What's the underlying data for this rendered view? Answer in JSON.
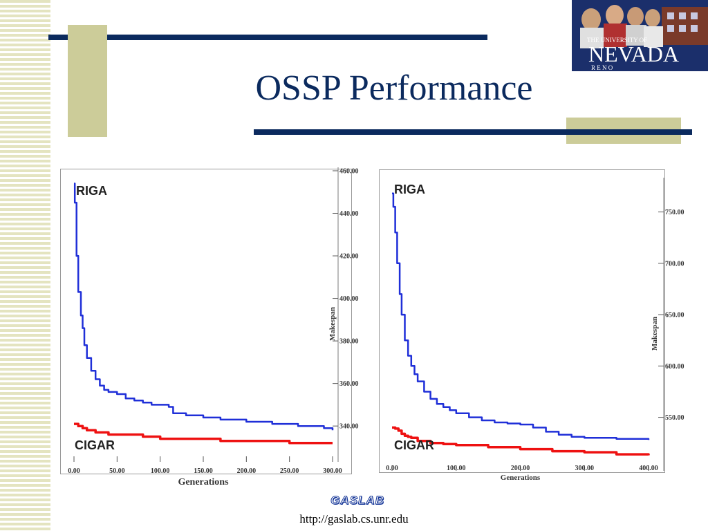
{
  "slide": {
    "title": "OSSP Performance",
    "footer_brand": "GASLAB",
    "footer_url": "http://gaslab.cs.unr.edu",
    "logo": {
      "line1": "THE UNIVERSITY OF",
      "line2": "NEVADA",
      "line3": "R E N O"
    }
  },
  "colors": {
    "title": "#0b2a5e",
    "accent_bar": "#0b2a5e",
    "stripe": "#e4e4c0",
    "riga": "#1f2fd8",
    "cigar": "#ee1111"
  },
  "chart_data": [
    {
      "type": "line",
      "xlabel": "Generations",
      "ylabel": "Makespan",
      "xlim": [
        0,
        300
      ],
      "ylim": [
        329,
        460
      ],
      "xticks": [
        "0.00",
        "50.00",
        "100.00",
        "150.00",
        "200.00",
        "250.00",
        "300.00"
      ],
      "yticks": [
        "340.00",
        "360.00",
        "380.00",
        "400.00",
        "420.00",
        "440.00",
        "460.00"
      ],
      "series": [
        {
          "name": "RIGA",
          "x": [
            0,
            1,
            3,
            5,
            8,
            10,
            12,
            15,
            20,
            25,
            30,
            35,
            40,
            50,
            60,
            70,
            80,
            90,
            100,
            110,
            115,
            130,
            150,
            170,
            200,
            230,
            260,
            290,
            300
          ],
          "y": [
            454,
            445,
            420,
            403,
            392,
            386,
            378,
            372,
            366,
            362,
            359,
            357,
            356,
            355,
            353,
            352,
            351,
            350,
            350,
            349,
            346,
            345,
            344,
            343,
            342,
            341,
            340,
            339,
            338
          ]
        },
        {
          "name": "CIGAR",
          "x": [
            0,
            5,
            10,
            15,
            20,
            25,
            30,
            40,
            60,
            80,
            100,
            130,
            150,
            170,
            200,
            250,
            280,
            300
          ],
          "y": [
            341,
            340,
            339,
            338,
            338,
            337,
            337,
            336,
            336,
            335,
            334,
            334,
            334,
            333,
            333,
            332,
            332,
            332
          ]
        }
      ]
    },
    {
      "type": "line",
      "xlabel": "Generations",
      "ylabel": "Makespan",
      "xlim": [
        0,
        400
      ],
      "ylim": [
        510,
        780
      ],
      "xticks": [
        "0.00",
        "100.00",
        "200.00",
        "300.00",
        "400.00"
      ],
      "yticks": [
        "550.00",
        "600.00",
        "650.00",
        "700.00",
        "750.00"
      ],
      "series": [
        {
          "name": "RIGA",
          "x": [
            0,
            2,
            5,
            8,
            12,
            15,
            20,
            25,
            30,
            35,
            40,
            50,
            60,
            70,
            80,
            90,
            100,
            120,
            140,
            160,
            180,
            200,
            220,
            240,
            260,
            280,
            300,
            350,
            400
          ],
          "y": [
            768,
            755,
            730,
            700,
            670,
            650,
            625,
            610,
            600,
            592,
            585,
            575,
            568,
            563,
            560,
            557,
            554,
            550,
            547,
            545,
            544,
            543,
            540,
            536,
            533,
            531,
            530,
            529,
            528
          ]
        },
        {
          "name": "CIGAR",
          "x": [
            0,
            5,
            10,
            15,
            20,
            25,
            30,
            40,
            60,
            80,
            100,
            150,
            200,
            250,
            300,
            350,
            400
          ],
          "y": [
            540,
            539,
            537,
            534,
            532,
            531,
            530,
            527,
            525,
            524,
            523,
            521,
            519,
            517,
            516,
            514,
            513
          ]
        }
      ]
    }
  ]
}
